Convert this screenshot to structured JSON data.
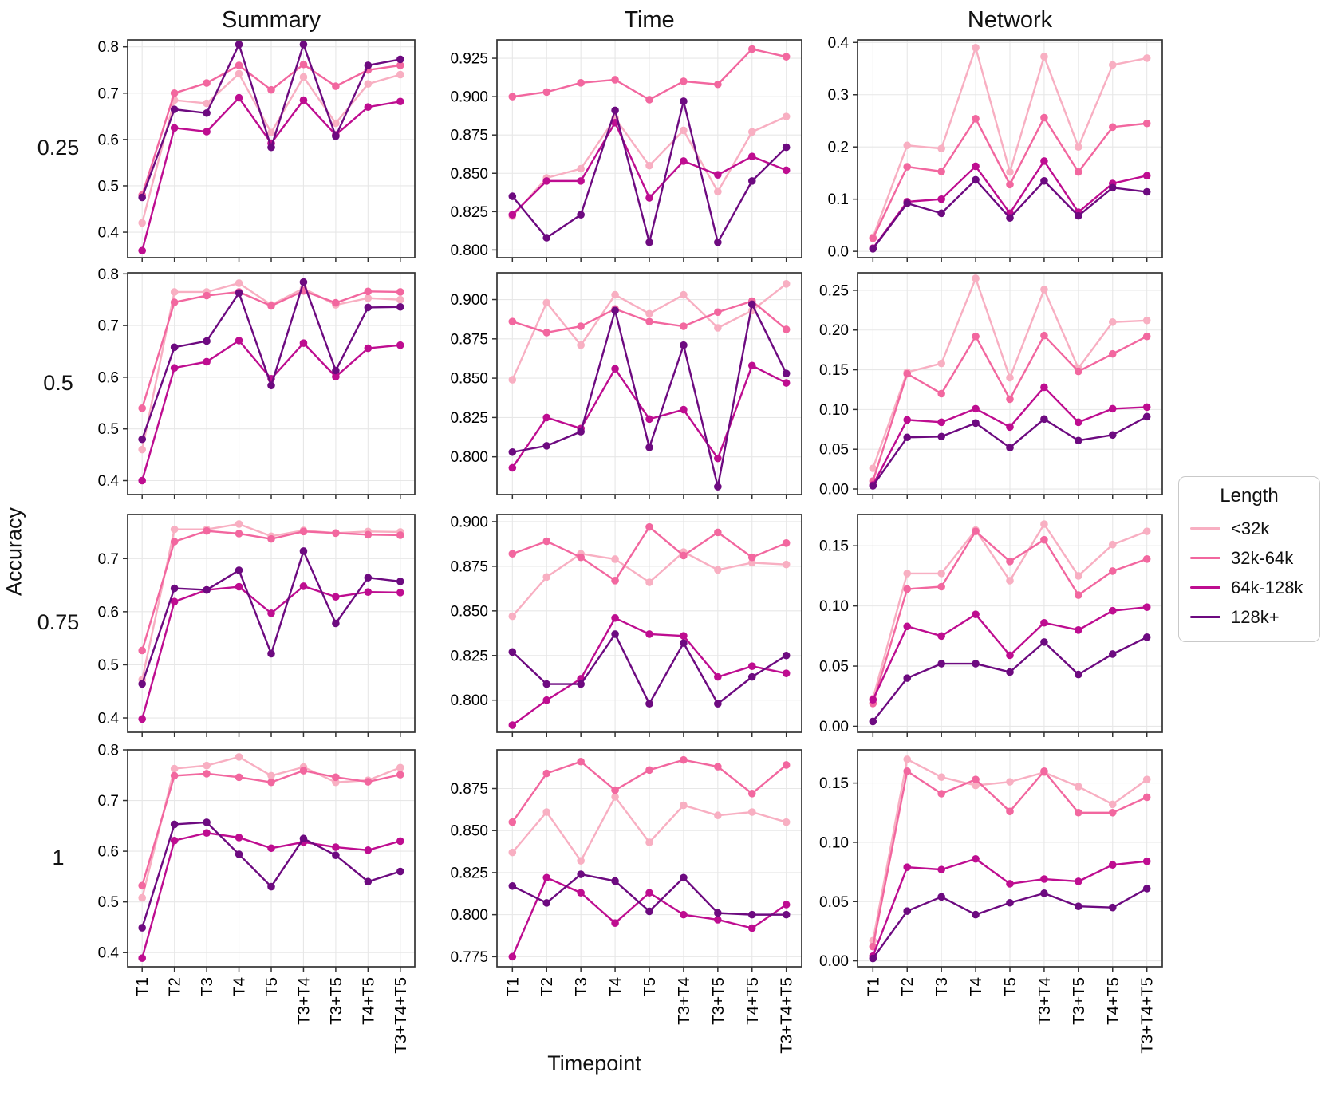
{
  "figure": {
    "col_titles": [
      "Summary",
      "Time",
      "Network"
    ],
    "row_labels": [
      "0.25",
      "0.5",
      "0.75",
      "1"
    ],
    "ylabel": "Accuracy",
    "xlabel": "Timepoint",
    "legend": {
      "title": "Length",
      "entries": [
        {
          "label": "<32k",
          "color": "#F8AFC2"
        },
        {
          "label": "32k-64k",
          "color": "#F2679F"
        },
        {
          "label": "64k-128k",
          "color": "#BE0D90"
        },
        {
          "label": "128k+",
          "color": "#6D0A80"
        }
      ]
    },
    "style": {
      "grid_color": "#e7e7e7",
      "spine_color": "#333333",
      "tick_label_color": "#000000"
    }
  },
  "chart_data": [
    {
      "type": "line",
      "panel": "Summary",
      "threshold": "0.25",
      "categories": [
        "T1",
        "T2",
        "T3",
        "T4",
        "T5",
        "T3+T4",
        "T3+T5",
        "T4+T5",
        "T3+T4+T5"
      ],
      "ylim": [
        0.345,
        0.815
      ],
      "yticks": [
        0.4,
        0.5,
        0.6,
        0.7,
        0.8
      ],
      "ytick_labels": [
        "0.4",
        "0.5",
        "0.6",
        "0.7",
        "0.8"
      ],
      "series": [
        {
          "name": "<32k",
          "values": [
            0.42,
            0.685,
            0.678,
            0.742,
            0.615,
            0.735,
            0.635,
            0.72,
            0.74
          ]
        },
        {
          "name": "32k-64k",
          "values": [
            0.48,
            0.7,
            0.722,
            0.76,
            0.707,
            0.762,
            0.715,
            0.75,
            0.76
          ]
        },
        {
          "name": "64k-128k",
          "values": [
            0.36,
            0.625,
            0.617,
            0.69,
            0.592,
            0.685,
            0.61,
            0.67,
            0.682
          ]
        },
        {
          "name": "128k+",
          "values": [
            0.475,
            0.665,
            0.657,
            0.805,
            0.583,
            0.805,
            0.607,
            0.76,
            0.773
          ]
        }
      ]
    },
    {
      "type": "line",
      "panel": "Time",
      "threshold": "0.25",
      "categories": [
        "T1",
        "T2",
        "T3",
        "T4",
        "T5",
        "T3+T4",
        "T3+T5",
        "T4+T5",
        "T3+T4+T5"
      ],
      "ylim": [
        0.795,
        0.937
      ],
      "yticks": [
        0.8,
        0.825,
        0.85,
        0.875,
        0.9,
        0.925
      ],
      "ytick_labels": [
        "0.800",
        "0.825",
        "0.850",
        "0.875",
        "0.900",
        "0.925"
      ],
      "series": [
        {
          "name": "<32k",
          "values": [
            0.822,
            0.847,
            0.853,
            0.886,
            0.855,
            0.878,
            0.838,
            0.877,
            0.887
          ]
        },
        {
          "name": "32k-64k",
          "values": [
            0.9,
            0.903,
            0.909,
            0.911,
            0.898,
            0.91,
            0.908,
            0.931,
            0.926
          ]
        },
        {
          "name": "64k-128k",
          "values": [
            0.823,
            0.845,
            0.845,
            0.883,
            0.834,
            0.858,
            0.849,
            0.861,
            0.852
          ]
        },
        {
          "name": "128k+",
          "values": [
            0.835,
            0.808,
            0.823,
            0.891,
            0.805,
            0.897,
            0.805,
            0.845,
            0.867
          ]
        }
      ]
    },
    {
      "type": "line",
      "panel": "Network",
      "threshold": "0.25",
      "categories": [
        "T1",
        "T2",
        "T3",
        "T4",
        "T5",
        "T3+T4",
        "T3+T5",
        "T4+T5",
        "T3+T4+T5"
      ],
      "ylim": [
        -0.012,
        0.405
      ],
      "yticks": [
        0.0,
        0.1,
        0.2,
        0.3,
        0.4
      ],
      "ytick_labels": [
        "0.0",
        "0.1",
        "0.2",
        "0.3",
        "0.4"
      ],
      "series": [
        {
          "name": "<32k",
          "values": [
            0.027,
            0.203,
            0.197,
            0.39,
            0.152,
            0.373,
            0.2,
            0.357,
            0.37
          ]
        },
        {
          "name": "32k-64k",
          "values": [
            0.025,
            0.162,
            0.153,
            0.254,
            0.128,
            0.256,
            0.152,
            0.238,
            0.245
          ]
        },
        {
          "name": "64k-128k",
          "values": [
            0.006,
            0.095,
            0.1,
            0.163,
            0.073,
            0.173,
            0.075,
            0.13,
            0.145
          ]
        },
        {
          "name": "128k+",
          "values": [
            0.005,
            0.092,
            0.073,
            0.137,
            0.064,
            0.135,
            0.068,
            0.122,
            0.114
          ]
        }
      ]
    },
    {
      "type": "line",
      "panel": "Summary",
      "threshold": "0.5",
      "categories": [
        "T1",
        "T2",
        "T3",
        "T4",
        "T5",
        "T3+T4",
        "T3+T5",
        "T4+T5",
        "T3+T4+T5"
      ],
      "ylim": [
        0.373,
        0.802
      ],
      "yticks": [
        0.4,
        0.5,
        0.6,
        0.7,
        0.8
      ],
      "ytick_labels": [
        "0.4",
        "0.5",
        "0.6",
        "0.7",
        "0.8"
      ],
      "series": [
        {
          "name": "<32k",
          "values": [
            0.46,
            0.765,
            0.765,
            0.782,
            0.74,
            0.772,
            0.74,
            0.753,
            0.75
          ]
        },
        {
          "name": "32k-64k",
          "values": [
            0.54,
            0.745,
            0.758,
            0.765,
            0.738,
            0.767,
            0.744,
            0.766,
            0.765
          ]
        },
        {
          "name": "64k-128k",
          "values": [
            0.4,
            0.618,
            0.63,
            0.671,
            0.597,
            0.666,
            0.601,
            0.656,
            0.662
          ]
        },
        {
          "name": "128k+",
          "values": [
            0.48,
            0.658,
            0.67,
            0.763,
            0.584,
            0.784,
            0.613,
            0.735,
            0.736
          ]
        }
      ]
    },
    {
      "type": "line",
      "panel": "Time",
      "threshold": "0.5",
      "categories": [
        "T1",
        "T2",
        "T3",
        "T4",
        "T5",
        "T3+T4",
        "T3+T5",
        "T4+T5",
        "T3+T4+T5"
      ],
      "ylim": [
        0.776,
        0.917
      ],
      "yticks": [
        0.8,
        0.825,
        0.85,
        0.875,
        0.9
      ],
      "ytick_labels": [
        "0.800",
        "0.825",
        "0.850",
        "0.875",
        "0.900"
      ],
      "series": [
        {
          "name": "<32k",
          "values": [
            0.849,
            0.898,
            0.871,
            0.903,
            0.891,
            0.903,
            0.882,
            0.893,
            0.91
          ]
        },
        {
          "name": "32k-64k",
          "values": [
            0.886,
            0.879,
            0.883,
            0.894,
            0.886,
            0.883,
            0.892,
            0.899,
            0.881
          ]
        },
        {
          "name": "64k-128k",
          "values": [
            0.793,
            0.825,
            0.818,
            0.856,
            0.824,
            0.83,
            0.799,
            0.858,
            0.847
          ]
        },
        {
          "name": "128k+",
          "values": [
            0.803,
            0.807,
            0.816,
            0.893,
            0.806,
            0.871,
            0.781,
            0.897,
            0.853
          ]
        }
      ]
    },
    {
      "type": "line",
      "panel": "Network",
      "threshold": "0.5",
      "categories": [
        "T1",
        "T2",
        "T3",
        "T4",
        "T5",
        "T3+T4",
        "T3+T5",
        "T4+T5",
        "T3+T4+T5"
      ],
      "ylim": [
        -0.007,
        0.272
      ],
      "yticks": [
        0.0,
        0.05,
        0.1,
        0.15,
        0.2,
        0.25
      ],
      "ytick_labels": [
        "0.00",
        "0.05",
        "0.10",
        "0.15",
        "0.20",
        "0.25"
      ],
      "series": [
        {
          "name": "<32k",
          "values": [
            0.026,
            0.147,
            0.158,
            0.265,
            0.14,
            0.251,
            0.152,
            0.21,
            0.212
          ]
        },
        {
          "name": "32k-64k",
          "values": [
            0.01,
            0.145,
            0.12,
            0.192,
            0.113,
            0.193,
            0.148,
            0.17,
            0.192
          ]
        },
        {
          "name": "64k-128k",
          "values": [
            0.005,
            0.087,
            0.084,
            0.101,
            0.078,
            0.128,
            0.084,
            0.101,
            0.103
          ]
        },
        {
          "name": "128k+",
          "values": [
            0.004,
            0.065,
            0.066,
            0.083,
            0.052,
            0.088,
            0.061,
            0.068,
            0.091
          ]
        }
      ]
    },
    {
      "type": "line",
      "panel": "Summary",
      "threshold": "0.75",
      "categories": [
        "T1",
        "T2",
        "T3",
        "T4",
        "T5",
        "T3+T4",
        "T3+T5",
        "T4+T5",
        "T3+T4+T5"
      ],
      "ylim": [
        0.373,
        0.783
      ],
      "yticks": [
        0.4,
        0.5,
        0.6,
        0.7
      ],
      "ytick_labels": [
        "0.4",
        "0.5",
        "0.6",
        "0.7"
      ],
      "series": [
        {
          "name": "<32k",
          "values": [
            0.472,
            0.755,
            0.755,
            0.765,
            0.742,
            0.753,
            0.748,
            0.751,
            0.75
          ]
        },
        {
          "name": "32k-64k",
          "values": [
            0.527,
            0.732,
            0.752,
            0.747,
            0.737,
            0.751,
            0.748,
            0.745,
            0.744
          ]
        },
        {
          "name": "64k-128k",
          "values": [
            0.398,
            0.619,
            0.641,
            0.647,
            0.597,
            0.648,
            0.628,
            0.637,
            0.636
          ]
        },
        {
          "name": "128k+",
          "values": [
            0.464,
            0.644,
            0.641,
            0.678,
            0.521,
            0.714,
            0.578,
            0.664,
            0.657
          ]
        }
      ]
    },
    {
      "type": "line",
      "panel": "Time",
      "threshold": "0.75",
      "categories": [
        "T1",
        "T2",
        "T3",
        "T4",
        "T5",
        "T3+T4",
        "T3+T5",
        "T4+T5",
        "T3+T4+T5"
      ],
      "ylim": [
        0.782,
        0.904
      ],
      "yticks": [
        0.8,
        0.825,
        0.85,
        0.875,
        0.9
      ],
      "ytick_labels": [
        "0.800",
        "0.825",
        "0.850",
        "0.875",
        "0.900"
      ],
      "series": [
        {
          "name": "<32k",
          "values": [
            0.847,
            0.869,
            0.882,
            0.879,
            0.866,
            0.883,
            0.873,
            0.877,
            0.876
          ]
        },
        {
          "name": "32k-64k",
          "values": [
            0.882,
            0.889,
            0.88,
            0.867,
            0.897,
            0.881,
            0.894,
            0.88,
            0.888
          ]
        },
        {
          "name": "64k-128k",
          "values": [
            0.786,
            0.8,
            0.812,
            0.846,
            0.837,
            0.836,
            0.813,
            0.819,
            0.815
          ]
        },
        {
          "name": "128k+",
          "values": [
            0.827,
            0.809,
            0.809,
            0.837,
            0.798,
            0.832,
            0.798,
            0.813,
            0.825
          ]
        }
      ]
    },
    {
      "type": "line",
      "panel": "Network",
      "threshold": "0.75",
      "categories": [
        "T1",
        "T2",
        "T3",
        "T4",
        "T5",
        "T3+T4",
        "T3+T5",
        "T4+T5",
        "T3+T4+T5"
      ],
      "ylim": [
        -0.005,
        0.176
      ],
      "yticks": [
        0.0,
        0.05,
        0.1,
        0.15
      ],
      "ytick_labels": [
        "0.00",
        "0.05",
        "0.10",
        "0.15"
      ],
      "series": [
        {
          "name": "<32k",
          "values": [
            0.023,
            0.127,
            0.127,
            0.163,
            0.121,
            0.168,
            0.125,
            0.151,
            0.162
          ]
        },
        {
          "name": "32k-64k",
          "values": [
            0.019,
            0.114,
            0.116,
            0.162,
            0.137,
            0.155,
            0.109,
            0.129,
            0.139
          ]
        },
        {
          "name": "64k-128k",
          "values": [
            0.022,
            0.083,
            0.075,
            0.093,
            0.059,
            0.086,
            0.08,
            0.096,
            0.099
          ]
        },
        {
          "name": "128k+",
          "values": [
            0.004,
            0.04,
            0.052,
            0.052,
            0.045,
            0.07,
            0.043,
            0.06,
            0.074
          ]
        }
      ]
    },
    {
      "type": "line",
      "panel": "Summary",
      "threshold": "1",
      "categories": [
        "T1",
        "T2",
        "T3",
        "T4",
        "T5",
        "T3+T4",
        "T3+T5",
        "T4+T5",
        "T3+T4+T5"
      ],
      "ylim": [
        0.372,
        0.8
      ],
      "yticks": [
        0.4,
        0.5,
        0.6,
        0.7,
        0.8
      ],
      "ytick_labels": [
        "0.4",
        "0.5",
        "0.6",
        "0.7",
        "0.8"
      ],
      "series": [
        {
          "name": "<32k",
          "values": [
            0.508,
            0.763,
            0.769,
            0.786,
            0.749,
            0.766,
            0.736,
            0.74,
            0.765
          ]
        },
        {
          "name": "32k-64k",
          "values": [
            0.532,
            0.749,
            0.753,
            0.746,
            0.736,
            0.759,
            0.746,
            0.737,
            0.751
          ]
        },
        {
          "name": "64k-128k",
          "values": [
            0.389,
            0.621,
            0.636,
            0.627,
            0.606,
            0.618,
            0.608,
            0.602,
            0.62
          ]
        },
        {
          "name": "128k+",
          "values": [
            0.449,
            0.653,
            0.657,
            0.594,
            0.53,
            0.625,
            0.592,
            0.54,
            0.56
          ]
        }
      ]
    },
    {
      "type": "line",
      "panel": "Time",
      "threshold": "1",
      "categories": [
        "T1",
        "T2",
        "T3",
        "T4",
        "T5",
        "T3+T4",
        "T3+T5",
        "T4+T5",
        "T3+T4+T5"
      ],
      "ylim": [
        0.769,
        0.898
      ],
      "yticks": [
        0.775,
        0.8,
        0.825,
        0.85,
        0.875
      ],
      "ytick_labels": [
        "0.775",
        "0.800",
        "0.825",
        "0.850",
        "0.875"
      ],
      "series": [
        {
          "name": "<32k",
          "values": [
            0.837,
            0.861,
            0.832,
            0.87,
            0.843,
            0.865,
            0.859,
            0.861,
            0.855
          ]
        },
        {
          "name": "32k-64k",
          "values": [
            0.855,
            0.884,
            0.891,
            0.874,
            0.886,
            0.892,
            0.888,
            0.872,
            0.889
          ]
        },
        {
          "name": "64k-128k",
          "values": [
            0.775,
            0.822,
            0.813,
            0.795,
            0.813,
            0.8,
            0.797,
            0.792,
            0.806
          ]
        },
        {
          "name": "128k+",
          "values": [
            0.817,
            0.807,
            0.824,
            0.82,
            0.802,
            0.822,
            0.801,
            0.8,
            0.8
          ]
        }
      ]
    },
    {
      "type": "line",
      "panel": "Network",
      "threshold": "1",
      "categories": [
        "T1",
        "T2",
        "T3",
        "T4",
        "T5",
        "T3+T4",
        "T3+T5",
        "T4+T5",
        "T3+T4+T5"
      ],
      "ylim": [
        -0.005,
        0.178
      ],
      "yticks": [
        0.0,
        0.05,
        0.1,
        0.15
      ],
      "ytick_labels": [
        "0.00",
        "0.05",
        "0.10",
        "0.15"
      ],
      "series": [
        {
          "name": "<32k",
          "values": [
            0.017,
            0.17,
            0.155,
            0.148,
            0.151,
            0.159,
            0.147,
            0.132,
            0.153
          ]
        },
        {
          "name": "32k-64k",
          "values": [
            0.012,
            0.16,
            0.141,
            0.153,
            0.126,
            0.16,
            0.125,
            0.125,
            0.138
          ]
        },
        {
          "name": "64k-128k",
          "values": [
            0.004,
            0.079,
            0.077,
            0.086,
            0.065,
            0.069,
            0.067,
            0.081,
            0.084
          ]
        },
        {
          "name": "128k+",
          "values": [
            0.002,
            0.042,
            0.054,
            0.039,
            0.049,
            0.057,
            0.046,
            0.045,
            0.061
          ]
        }
      ]
    }
  ]
}
